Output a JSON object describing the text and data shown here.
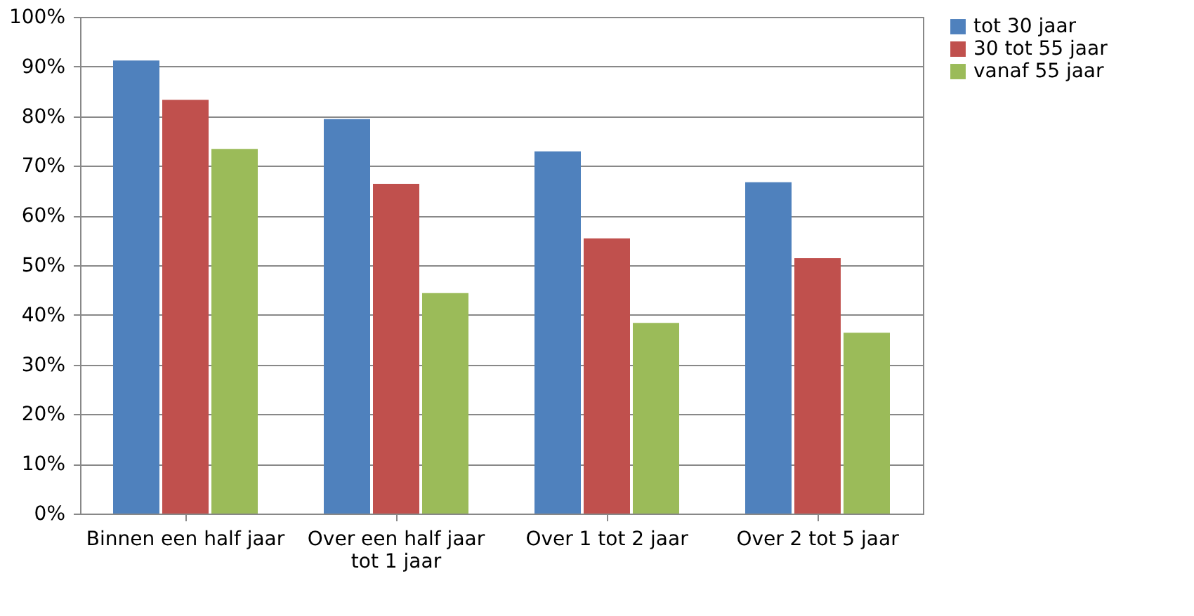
{
  "chart_data": {
    "type": "bar",
    "categories": [
      "Binnen een half jaar",
      "Over een half jaar tot 1 jaar",
      "Over 1 tot 2 jaar",
      "Over 2 tot 5 jaar"
    ],
    "series": [
      {
        "name": "tot 30 jaar",
        "color": "#4f81bd",
        "values": [
          91.2,
          79.4,
          72.9,
          66.7
        ]
      },
      {
        "name": "30 tot 55 jaar",
        "color": "#c0504d",
        "values": [
          83.3,
          66.4,
          55.4,
          51.4
        ]
      },
      {
        "name": "vanaf 55 jaar",
        "color": "#9bbb59",
        "values": [
          73.4,
          44.4,
          38.4,
          36.4
        ]
      }
    ],
    "ylim": [
      0,
      100
    ],
    "yticks": [
      {
        "value": 0,
        "label": "0%"
      },
      {
        "value": 10,
        "label": "10%"
      },
      {
        "value": 20,
        "label": "20%"
      },
      {
        "value": 30,
        "label": "30%"
      },
      {
        "value": 40,
        "label": "40%"
      },
      {
        "value": 50,
        "label": "50%"
      },
      {
        "value": 60,
        "label": "60%"
      },
      {
        "value": 70,
        "label": "70%"
      },
      {
        "value": 80,
        "label": "80%"
      },
      {
        "value": 90,
        "label": "90%"
      },
      {
        "value": 100,
        "label": "100%"
      }
    ],
    "grid": "y",
    "legend": "right"
  }
}
